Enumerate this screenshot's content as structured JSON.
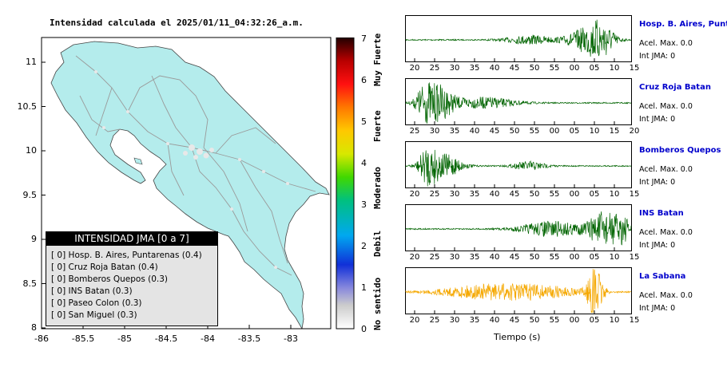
{
  "map": {
    "title": "Intensidad calculada el 2025/01/11_04:32:26_a.m.",
    "lat_ticks": [
      "11",
      "10.5",
      "10",
      "9.5",
      "9",
      "8.5",
      "8"
    ],
    "lon_ticks": [
      "-86",
      "-85.5",
      "-85",
      "-84.5",
      "-84",
      "-83.5",
      "-83"
    ],
    "land_color": "#b4ecec",
    "road_color": "#9a9a9a",
    "legend": {
      "title": "INTENSIDAD JMA [0 a 7]",
      "rows": [
        "[ 0]  Hosp. B. Aires, Puntarenas (0.4)",
        "[ 0]  Cruz Roja Batan (0.4)",
        "[ 0]  Bomberos Quepos (0.3)",
        "[ 0]  INS Batan (0.3)",
        "[ 0]  Paseo Colon (0.3)",
        "[ 0]  San Miguel (0.3)"
      ]
    }
  },
  "colorbar": {
    "ticks": [
      "7",
      "6",
      "5",
      "4",
      "3",
      "2",
      "1",
      "0"
    ],
    "labels": [
      "Muy Fuerte",
      "Fuerte",
      "Moderado",
      "Debil",
      "No sentido"
    ]
  },
  "stations": [
    {
      "name": "Hosp. B. Aires, Puntare",
      "acel": "Acel. Max. 0.0",
      "int": "Int JMA: 0",
      "color": "#006400",
      "ticks": [
        "20",
        "25",
        "30",
        "35",
        "40",
        "45",
        "50",
        "55",
        "00",
        "05",
        "10",
        "15"
      ]
    },
    {
      "name": "Cruz Roja Batan",
      "acel": "Acel. Max. 0.0",
      "int": "Int JMA: 0",
      "color": "#006400",
      "ticks": [
        "25",
        "30",
        "35",
        "40",
        "45",
        "50",
        "55",
        "00",
        "05",
        "10",
        "15",
        "20"
      ]
    },
    {
      "name": "Bomberos Quepos",
      "acel": "Acel. Max. 0.0",
      "int": "Int JMA: 0",
      "color": "#006400",
      "ticks": [
        "20",
        "25",
        "30",
        "35",
        "40",
        "45",
        "50",
        "55",
        "00",
        "05",
        "10",
        "15"
      ]
    },
    {
      "name": "INS Batan",
      "acel": "Acel. Max. 0.0",
      "int": "Int JMA: 0",
      "color": "#006400",
      "ticks": [
        "20",
        "25",
        "30",
        "35",
        "40",
        "45",
        "50",
        "55",
        "00",
        "05",
        "10",
        "15"
      ]
    },
    {
      "name": "La Sabana",
      "acel": "Acel. Max. 0.0",
      "int": "Int JMA: 0",
      "color": "#f5a800",
      "ticks": [
        "20",
        "25",
        "30",
        "35",
        "40",
        "45",
        "50",
        "55",
        "00",
        "05",
        "10",
        "15"
      ]
    }
  ],
  "xaxis_label": "Tiempo (s)"
}
